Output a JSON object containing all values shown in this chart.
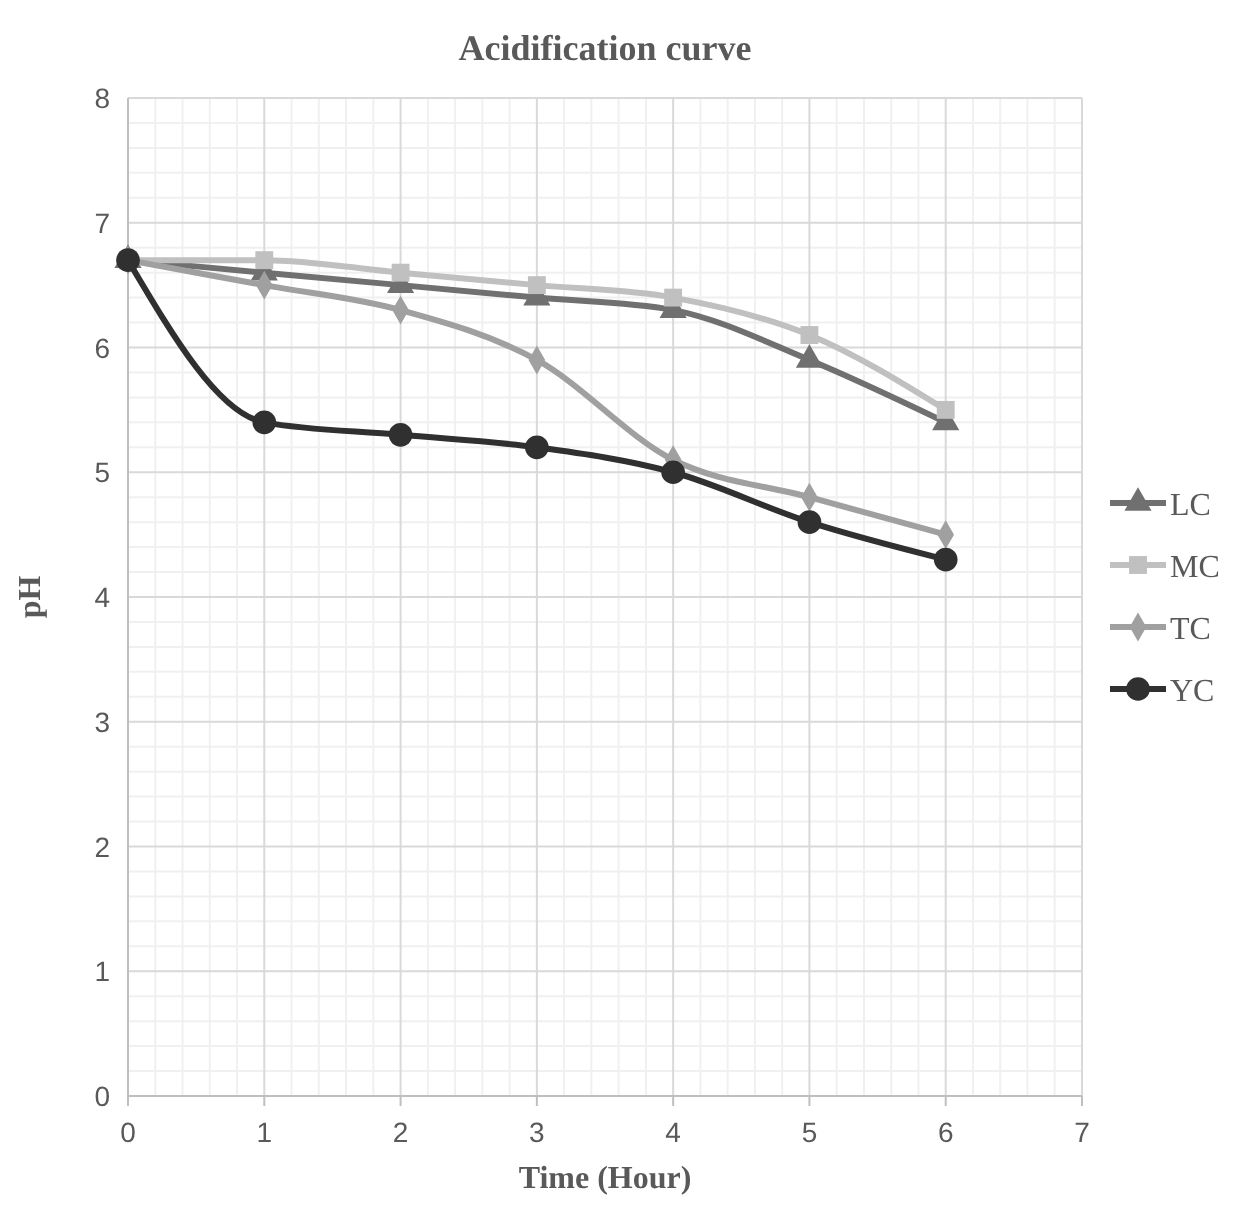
{
  "chart_data": {
    "type": "line",
    "title": "Acidification curve",
    "xlabel": "Time (Hour)",
    "ylabel": "pH",
    "x": [
      0,
      1,
      2,
      3,
      4,
      5,
      6
    ],
    "xlim": [
      0,
      7
    ],
    "xticks": [
      0,
      1,
      2,
      3,
      4,
      5,
      6,
      7
    ],
    "ylim": [
      0,
      8
    ],
    "yticks": [
      0,
      1,
      2,
      3,
      4,
      5,
      6,
      7,
      8
    ],
    "grid": true,
    "legend": "right",
    "series": [
      {
        "name": "LC",
        "color": "#707070",
        "marker": "triangle",
        "values": [
          6.7,
          6.6,
          6.5,
          6.4,
          6.3,
          5.9,
          5.4
        ]
      },
      {
        "name": "MC",
        "color": "#c0c0c0",
        "marker": "square",
        "values": [
          6.7,
          6.7,
          6.6,
          6.5,
          6.4,
          6.1,
          5.5
        ]
      },
      {
        "name": "TC",
        "color": "#a0a0a0",
        "marker": "diamond",
        "values": [
          6.7,
          6.5,
          6.3,
          5.9,
          5.1,
          4.8,
          4.5
        ]
      },
      {
        "name": "YC",
        "color": "#303030",
        "marker": "circle",
        "values": [
          6.7,
          5.4,
          5.3,
          5.2,
          5.0,
          4.6,
          4.3
        ]
      }
    ]
  }
}
